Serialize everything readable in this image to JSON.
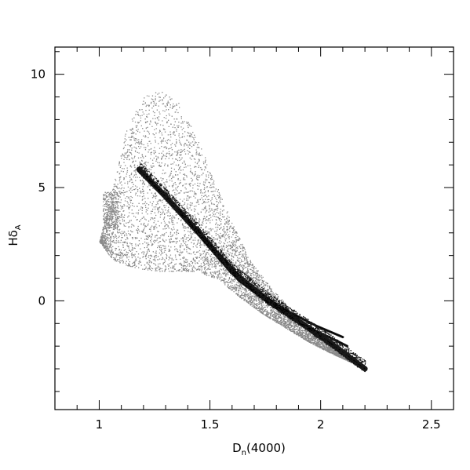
{
  "chart_data": {
    "type": "scatter",
    "title": "",
    "xlabel": {
      "main": "D",
      "sub": "n",
      "rest": "(4000)"
    },
    "ylabel": {
      "main": "Hδ",
      "sub": "A"
    },
    "xlim": [
      0.8,
      2.6
    ],
    "ylim": [
      -4.8,
      11.2
    ],
    "x_ticks": [
      1,
      1.5,
      2,
      2.5
    ],
    "x_tick_labels": [
      "1",
      "1.5",
      "2",
      "2.5"
    ],
    "y_ticks": [
      0,
      5,
      10
    ],
    "y_tick_labels": [
      "0",
      "5",
      "10"
    ],
    "x_minor_step": 0.1,
    "y_minor_step": 1,
    "grid": false,
    "series": [
      {
        "description_points": "dense gray cloud of model galaxies",
        "color": "#8a8a8a",
        "envelope_upper": [
          [
            1.0,
            2.6
          ],
          [
            1.06,
            5.0
          ],
          [
            1.12,
            7.6
          ],
          [
            1.2,
            9.0
          ],
          [
            1.28,
            9.3
          ],
          [
            1.36,
            8.7
          ],
          [
            1.44,
            7.2
          ],
          [
            1.52,
            5.3
          ],
          [
            1.6,
            3.4
          ],
          [
            1.68,
            1.8
          ],
          [
            1.78,
            0.5
          ],
          [
            1.9,
            -0.7
          ],
          [
            2.0,
            -1.5
          ],
          [
            2.1,
            -2.4
          ],
          [
            2.2,
            -3.0
          ]
        ],
        "envelope_lower": [
          [
            1.0,
            2.6
          ],
          [
            1.06,
            1.8
          ],
          [
            1.14,
            1.5
          ],
          [
            1.24,
            1.3
          ],
          [
            1.34,
            1.3
          ],
          [
            1.44,
            1.3
          ],
          [
            1.54,
            0.9
          ],
          [
            1.64,
            0.1
          ],
          [
            1.74,
            -0.6
          ],
          [
            1.84,
            -1.2
          ],
          [
            1.94,
            -1.8
          ],
          [
            2.04,
            -2.3
          ],
          [
            2.2,
            -3.0
          ]
        ],
        "clump": {
          "x": 1.05,
          "y": 4.0
        }
      },
      {
        "description_points": "dark narrow band of tracks",
        "color": "#000000",
        "tracks": [
          [
            [
              1.18,
              5.8
            ],
            [
              1.3,
              4.6
            ],
            [
              1.45,
              3.0
            ],
            [
              1.6,
              1.3
            ],
            [
              1.75,
              0.1
            ],
            [
              1.9,
              -0.9
            ],
            [
              2.05,
              -1.9
            ],
            [
              2.2,
              -3.0
            ]
          ],
          [
            [
              1.2,
              5.6
            ],
            [
              1.33,
              4.3
            ],
            [
              1.48,
              2.6
            ],
            [
              1.63,
              0.9
            ],
            [
              1.78,
              -0.2
            ],
            [
              1.93,
              -1.1
            ],
            [
              2.08,
              -1.8
            ],
            [
              2.12,
              -2.0
            ]
          ],
          [
            [
              1.22,
              5.4
            ],
            [
              1.36,
              4.0
            ],
            [
              1.52,
              2.3
            ],
            [
              1.68,
              0.6
            ],
            [
              1.84,
              -0.4
            ],
            [
              1.98,
              -1.1
            ],
            [
              2.1,
              -1.6
            ]
          ]
        ]
      }
    ]
  }
}
